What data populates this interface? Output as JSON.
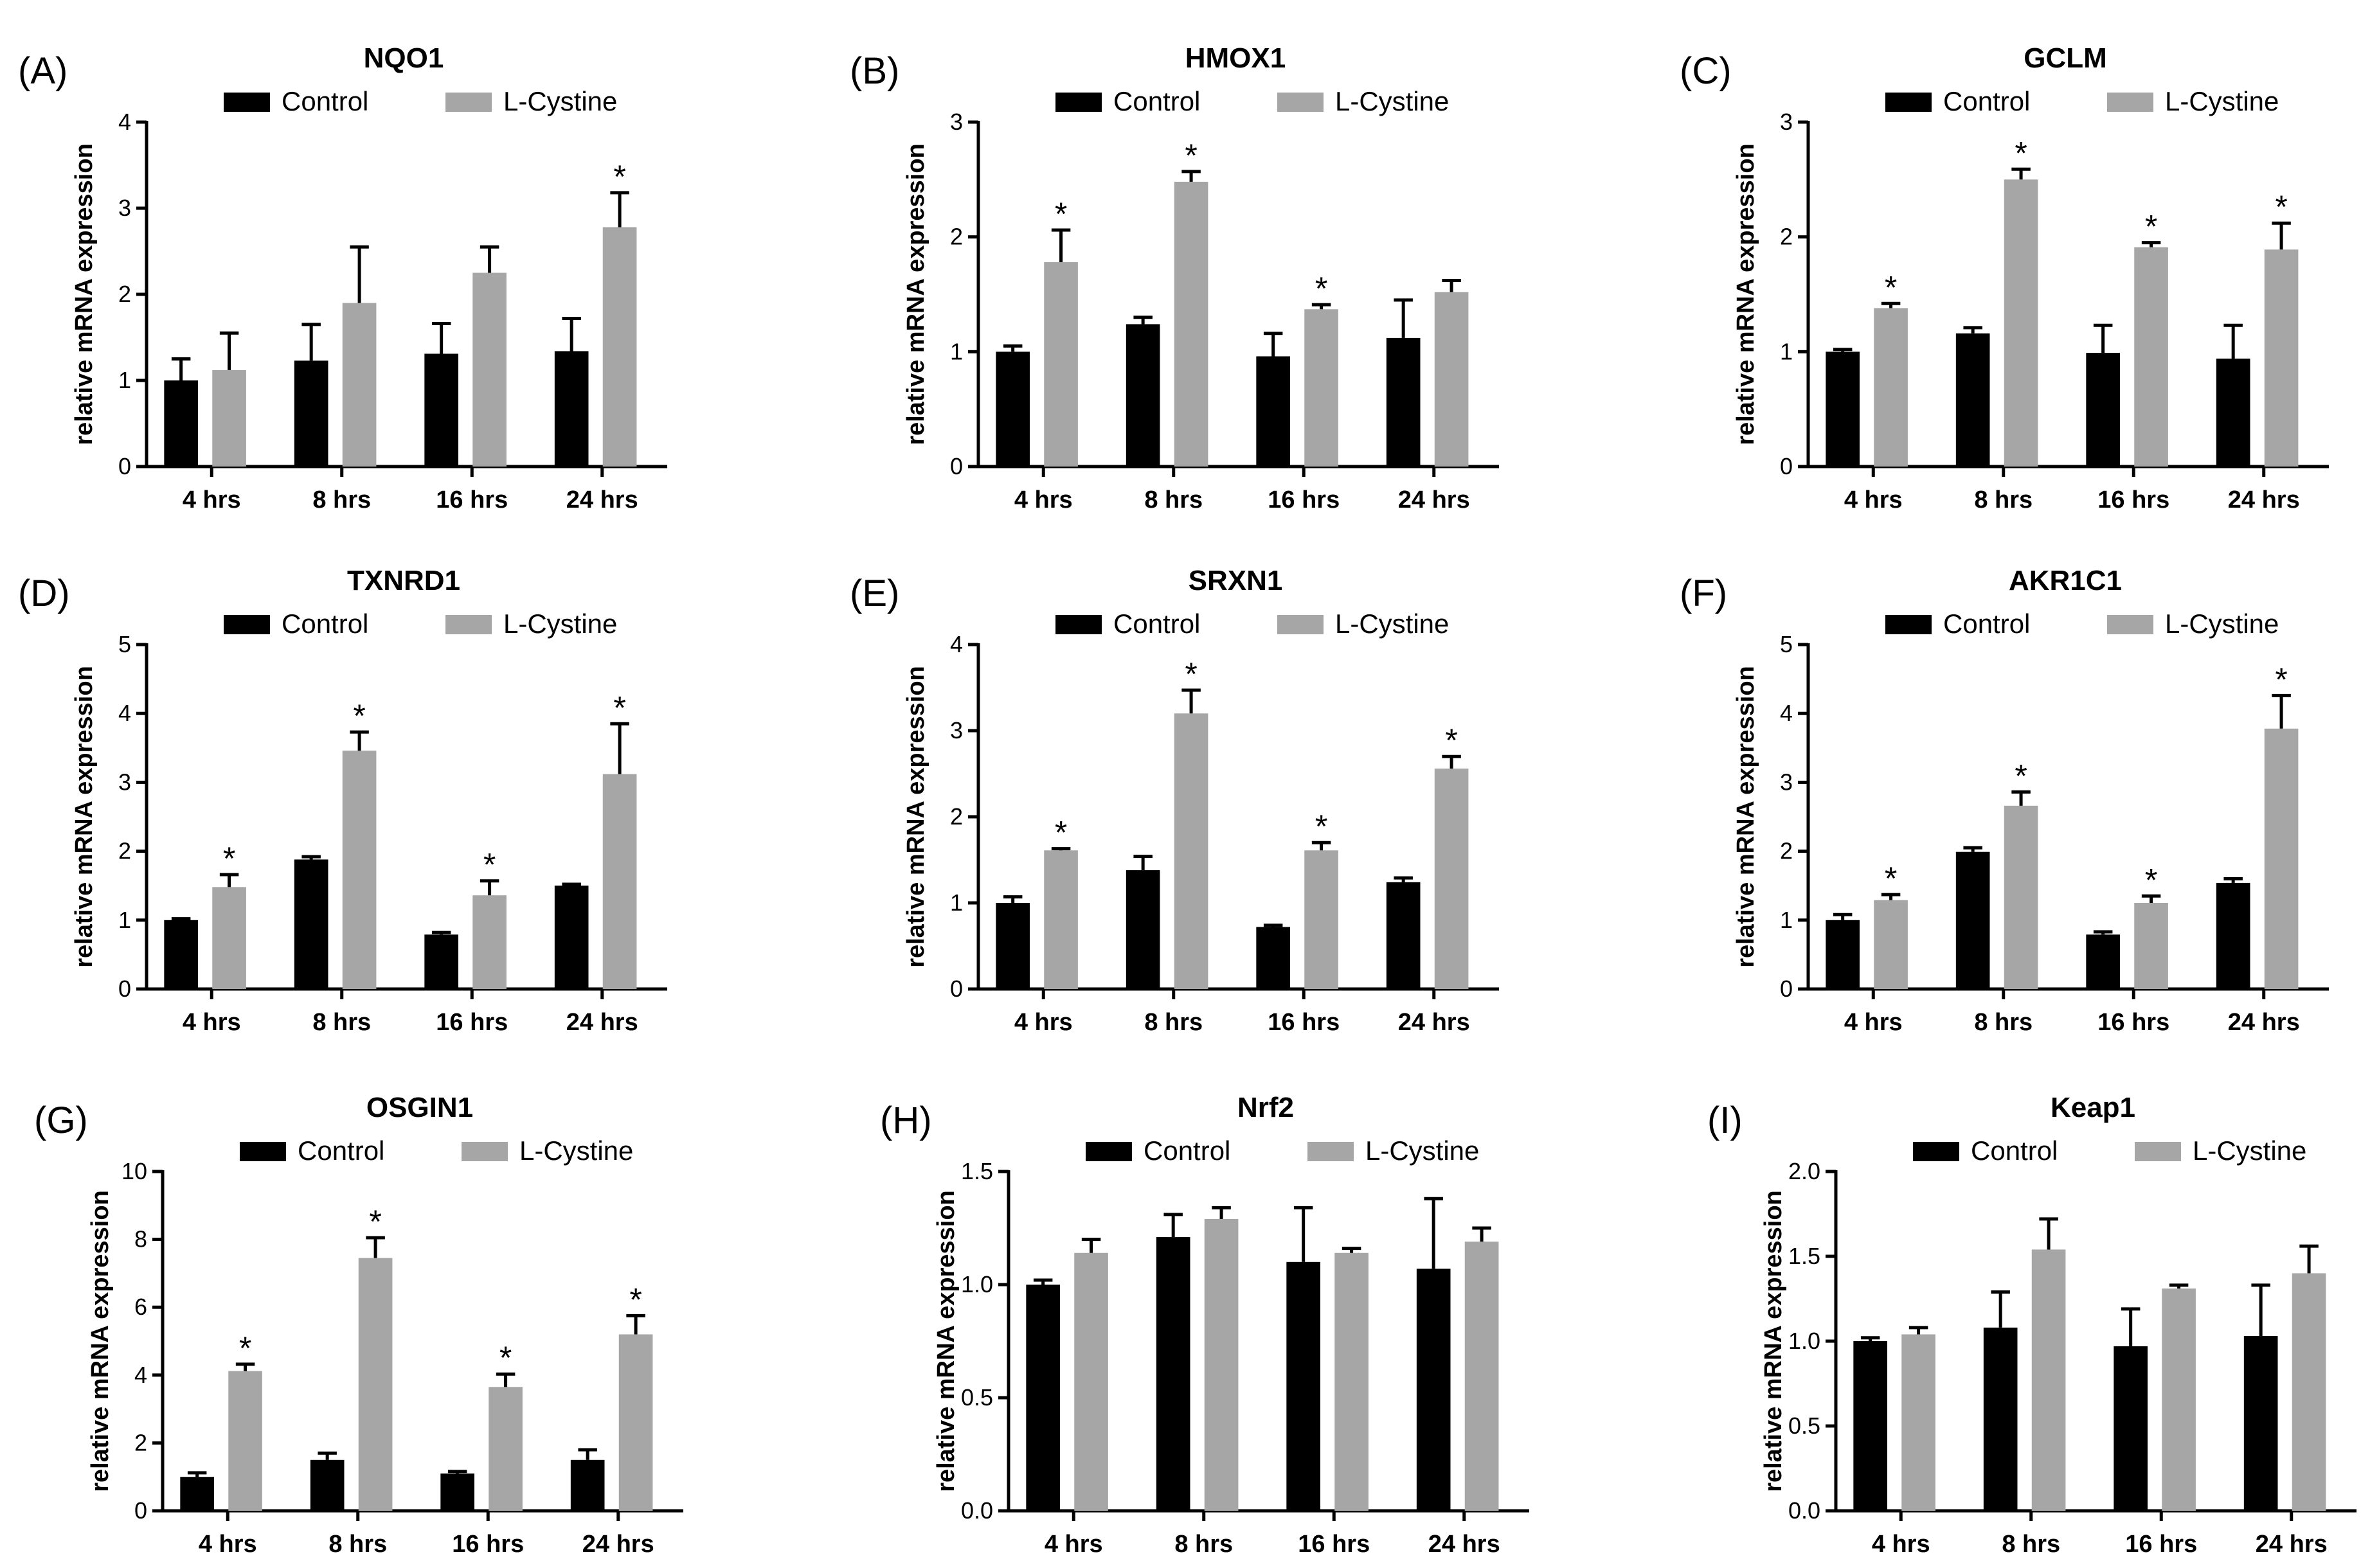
{
  "figure": {
    "series_names": [
      "Control",
      "L-Cystine"
    ],
    "colors": {
      "control": "#000000",
      "lcystine": "#a6a6a6"
    }
  },
  "chart_data": [
    {
      "type": "bar",
      "panel": "(A)",
      "title": "NQO1",
      "ylabel": "relative mRNA expression",
      "categories": [
        "4 hrs",
        "8 hrs",
        "16 hrs",
        "24 hrs"
      ],
      "ylim": [
        0,
        4
      ],
      "yticks": [
        0,
        1,
        2,
        3,
        4
      ],
      "series": [
        {
          "name": "Control",
          "values": [
            1.0,
            1.23,
            1.31,
            1.34
          ],
          "errors": [
            0.25,
            0.42,
            0.35,
            0.38
          ]
        },
        {
          "name": "L-Cystine",
          "values": [
            1.12,
            1.9,
            2.25,
            2.78
          ],
          "errors": [
            0.43,
            0.65,
            0.3,
            0.4
          ]
        }
      ],
      "significance": [
        "",
        "",
        "",
        "*"
      ]
    },
    {
      "type": "bar",
      "panel": "(B)",
      "title": "HMOX1",
      "ylabel": "relative mRNA expression",
      "categories": [
        "4 hrs",
        "8 hrs",
        "16 hrs",
        "24 hrs"
      ],
      "ylim": [
        0,
        3
      ],
      "yticks": [
        0,
        1,
        2,
        3
      ],
      "series": [
        {
          "name": "Control",
          "values": [
            1.0,
            1.24,
            0.96,
            1.12
          ],
          "errors": [
            0.05,
            0.06,
            0.2,
            0.33
          ]
        },
        {
          "name": "L-Cystine",
          "values": [
            1.78,
            2.48,
            1.37,
            1.52
          ],
          "errors": [
            0.28,
            0.09,
            0.04,
            0.1
          ]
        }
      ],
      "significance": [
        "*",
        "*",
        "*",
        ""
      ]
    },
    {
      "type": "bar",
      "panel": "(C)",
      "title": "GCLM",
      "ylabel": "relative mRNA expression",
      "categories": [
        "4 hrs",
        "8 hrs",
        "16 hrs",
        "24 hrs"
      ],
      "ylim": [
        0,
        3
      ],
      "yticks": [
        0,
        1,
        2,
        3
      ],
      "series": [
        {
          "name": "Control",
          "values": [
            1.0,
            1.16,
            0.99,
            0.94
          ],
          "errors": [
            0.02,
            0.05,
            0.24,
            0.29
          ]
        },
        {
          "name": "L-Cystine",
          "values": [
            1.38,
            2.5,
            1.91,
            1.89
          ],
          "errors": [
            0.04,
            0.09,
            0.04,
            0.23
          ]
        }
      ],
      "significance": [
        "*",
        "*",
        "*",
        "*"
      ]
    },
    {
      "type": "bar",
      "panel": "(D)",
      "title": "TXNRD1",
      "ylabel": "relative mRNA expression",
      "categories": [
        "4 hrs",
        "8 hrs",
        "16 hrs",
        "24 hrs"
      ],
      "ylim": [
        0,
        5
      ],
      "yticks": [
        0,
        1,
        2,
        3,
        4,
        5
      ],
      "series": [
        {
          "name": "Control",
          "values": [
            1.0,
            1.88,
            0.79,
            1.5
          ],
          "errors": [
            0.02,
            0.04,
            0.03,
            0.02
          ]
        },
        {
          "name": "L-Cystine",
          "values": [
            1.48,
            3.46,
            1.36,
            3.12
          ],
          "errors": [
            0.18,
            0.27,
            0.21,
            0.73
          ]
        }
      ],
      "significance": [
        "*",
        "*",
        "*",
        "*"
      ]
    },
    {
      "type": "bar",
      "panel": "(E)",
      "title": "SRXN1",
      "ylabel": "relative mRNA expression",
      "categories": [
        "4 hrs",
        "8 hrs",
        "16 hrs",
        "24 hrs"
      ],
      "ylim": [
        0,
        4
      ],
      "yticks": [
        0,
        1,
        2,
        3,
        4
      ],
      "series": [
        {
          "name": "Control",
          "values": [
            1.0,
            1.38,
            0.72,
            1.24
          ],
          "errors": [
            0.07,
            0.16,
            0.02,
            0.05
          ]
        },
        {
          "name": "L-Cystine",
          "values": [
            1.61,
            3.2,
            1.61,
            2.56
          ],
          "errors": [
            0.02,
            0.27,
            0.09,
            0.14
          ]
        }
      ],
      "significance": [
        "*",
        "*",
        "*",
        "*"
      ]
    },
    {
      "type": "bar",
      "panel": "(F)",
      "title": "AKR1C1",
      "ylabel": "relative mRNA expression",
      "categories": [
        "4 hrs",
        "8 hrs",
        "16 hrs",
        "24 hrs"
      ],
      "ylim": [
        0,
        5
      ],
      "yticks": [
        0,
        1,
        2,
        3,
        4,
        5
      ],
      "series": [
        {
          "name": "Control",
          "values": [
            1.0,
            1.99,
            0.79,
            1.54
          ],
          "errors": [
            0.08,
            0.06,
            0.04,
            0.06
          ]
        },
        {
          "name": "L-Cystine",
          "values": [
            1.29,
            2.66,
            1.25,
            3.78
          ],
          "errors": [
            0.08,
            0.2,
            0.1,
            0.48
          ]
        }
      ],
      "significance": [
        "*",
        "*",
        "*",
        "*"
      ]
    },
    {
      "type": "bar",
      "panel": "(G)",
      "title": "OSGIN1",
      "ylabel": "relative mRNA expression",
      "categories": [
        "4 hrs",
        "8 hrs",
        "16 hrs",
        "24 hrs"
      ],
      "ylim": [
        0,
        10
      ],
      "yticks": [
        0,
        2,
        4,
        6,
        8,
        10
      ],
      "series": [
        {
          "name": "Control",
          "values": [
            1.0,
            1.5,
            1.1,
            1.5
          ],
          "errors": [
            0.12,
            0.2,
            0.06,
            0.3
          ]
        },
        {
          "name": "L-Cystine",
          "values": [
            4.12,
            7.45,
            3.65,
            5.2
          ],
          "errors": [
            0.2,
            0.6,
            0.38,
            0.55
          ]
        }
      ],
      "significance": [
        "*",
        "*",
        "*",
        "*"
      ]
    },
    {
      "type": "bar",
      "panel": "(H)",
      "title": "Nrf2",
      "ylabel": "relative mRNA expression",
      "categories": [
        "4 hrs",
        "8 hrs",
        "16 hrs",
        "24 hrs"
      ],
      "ylim": [
        0,
        1.5
      ],
      "yticks": [
        "0.0",
        "0.5",
        "1.0",
        "1.5"
      ],
      "series": [
        {
          "name": "Control",
          "values": [
            1.0,
            1.21,
            1.1,
            1.07
          ],
          "errors": [
            0.02,
            0.1,
            0.24,
            0.31
          ]
        },
        {
          "name": "L-Cystine",
          "values": [
            1.14,
            1.29,
            1.14,
            1.19
          ],
          "errors": [
            0.06,
            0.05,
            0.02,
            0.06
          ]
        }
      ],
      "significance": [
        "",
        "",
        "",
        ""
      ]
    },
    {
      "type": "bar",
      "panel": "(I)",
      "title": "Keap1",
      "ylabel": "relative mRNA expression",
      "categories": [
        "4 hrs",
        "8 hrs",
        "16 hrs",
        "24 hrs"
      ],
      "ylim": [
        0,
        2
      ],
      "yticks": [
        "0.0",
        "0.5",
        "1.0",
        "1.5",
        "2.0"
      ],
      "series": [
        {
          "name": "Control",
          "values": [
            1.0,
            1.08,
            0.97,
            1.03
          ],
          "errors": [
            0.02,
            0.21,
            0.22,
            0.3
          ]
        },
        {
          "name": "L-Cystine",
          "values": [
            1.04,
            1.54,
            1.31,
            1.4
          ],
          "errors": [
            0.04,
            0.18,
            0.02,
            0.16
          ]
        }
      ],
      "significance": [
        "",
        "",
        "",
        ""
      ]
    }
  ]
}
